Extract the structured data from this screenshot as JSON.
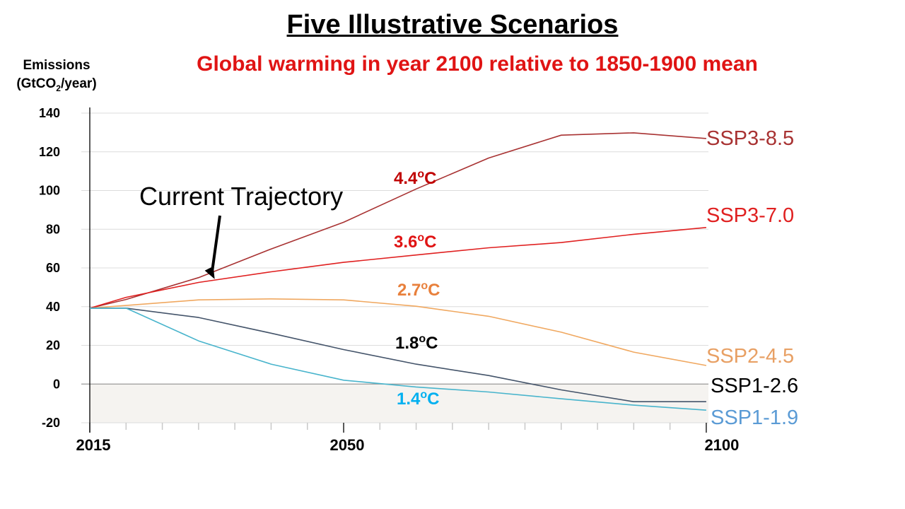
{
  "title": "Five Illustrative Scenarios",
  "subtitle": "Global warming in year 2100 relative to 1850-1900 mean",
  "ylabel_line1": "Emissions",
  "ylabel_pre": "(GtCO",
  "ylabel_sub": "2",
  "ylabel_post": "/year)",
  "chart_data": {
    "type": "line",
    "title": "Five Illustrative Scenarios",
    "subtitle": "Global warming in year 2100 relative to 1850-1900 mean",
    "ylabel": "Emissions (GtCO2/year)",
    "xlabel": "",
    "xlim": [
      2015,
      2100
    ],
    "ylim": [
      -20,
      140
    ],
    "y_ticks": [
      140,
      120,
      100,
      80,
      60,
      40,
      20,
      0,
      -20
    ],
    "x_tick_labels": [
      {
        "x": 2015,
        "label": "2015"
      },
      {
        "x": 2050,
        "label": "2050"
      },
      {
        "x": 2100,
        "label": "2100"
      }
    ],
    "minor_x_ticks": [
      2020,
      2025,
      2030,
      2035,
      2040,
      2045,
      2055,
      2060,
      2065,
      2070,
      2075,
      2080,
      2085,
      2090,
      2095
    ],
    "negative_region_shaded": true,
    "grid": "horizontal",
    "series": [
      {
        "name": "SSP3-8.5",
        "color": "#a83232",
        "temperature": "4.4",
        "temp_color": "#c00000",
        "x": [
          2015,
          2020,
          2030,
          2040,
          2050,
          2060,
          2070,
          2080,
          2090,
          2100
        ],
        "y": [
          39.2,
          43.7,
          55,
          69.8,
          83.6,
          100.8,
          116.8,
          128.6,
          129.8,
          126.9
        ]
      },
      {
        "name": "SSP3-7.0",
        "color": "#e02020",
        "temperature": "3.6",
        "temp_color": "#e01414",
        "x": [
          2015,
          2020,
          2030,
          2040,
          2050,
          2060,
          2070,
          2080,
          2090,
          2100
        ],
        "y": [
          39.2,
          44.8,
          52.5,
          58,
          62.9,
          66.7,
          70.4,
          73.1,
          77.4,
          80.9
        ]
      },
      {
        "name": "SSP2-4.5",
        "color": "#f0a860",
        "temperature": "2.7",
        "temp_color": "#e8803c",
        "x": [
          2015,
          2020,
          2030,
          2040,
          2050,
          2060,
          2070,
          2080,
          2090,
          2100
        ],
        "y": [
          39.2,
          40.6,
          43.5,
          44,
          43.5,
          40.2,
          35,
          26.8,
          16.5,
          9.6
        ]
      },
      {
        "name": "SSP1-2.6",
        "color": "#44546a",
        "temperature": "1.8",
        "temp_color": "#000000",
        "x": [
          2015,
          2020,
          2030,
          2040,
          2050,
          2060,
          2070,
          2080,
          2090,
          2100
        ],
        "y": [
          39.2,
          39.2,
          34.4,
          26.3,
          17.8,
          10.3,
          4.4,
          -3,
          -9.1,
          -9.1
        ]
      },
      {
        "name": "SSP1-1.9",
        "color": "#48b4cc",
        "temperature": "1.4",
        "temp_color": "#00b0f0",
        "x": [
          2015,
          2020,
          2030,
          2040,
          2050,
          2060,
          2070,
          2080,
          2090,
          2100
        ],
        "y": [
          39.2,
          39.2,
          22.3,
          10.3,
          2,
          -1.5,
          -4.1,
          -7.6,
          -10.9,
          -13.5
        ]
      }
    ],
    "series_label_colors": {
      "SSP3-8.5": "#a83232",
      "SSP3-7.0": "#e02020",
      "SSP2-4.5": "#e8a064",
      "SSP1-2.6": "#000000",
      "SSP1-1.9": "#5b9bd5"
    },
    "temperature_unit_prefix": "o",
    "temperature_unit_suffix": "C",
    "annotation": {
      "text": "Current Trajectory",
      "points_to_x": 2033,
      "points_to_y": 55
    }
  }
}
